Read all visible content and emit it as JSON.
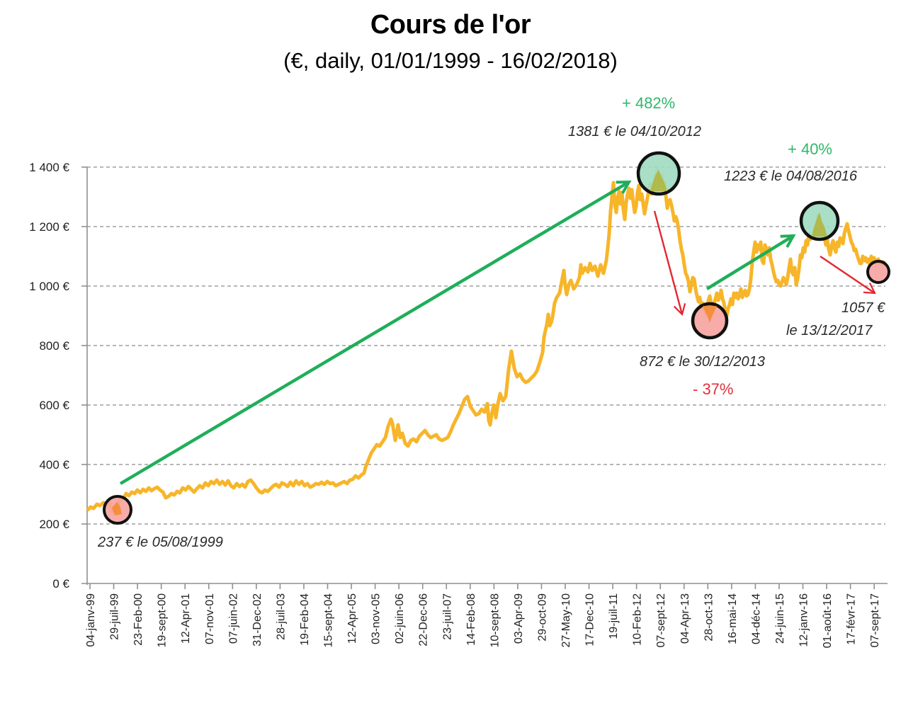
{
  "header": {
    "title": "Cours de l'or",
    "subtitle": "(€, daily, 01/01/1999 - 16/02/2018)"
  },
  "y_axis": {
    "ticks": [
      "0 €",
      "200 €",
      "400 €",
      "600 €",
      "800 €",
      "1 000 €",
      "1 200 €",
      "1 400 €"
    ]
  },
  "x_axis": {
    "ticks": [
      "04-janv-99",
      "29-juil-99",
      "23-Feb-00",
      "19-sept-00",
      "12-Apr-01",
      "07-nov-01",
      "07-juin-02",
      "31-Dec-02",
      "28-juil-03",
      "19-Feb-04",
      "15-sept-04",
      "12-Apr-05",
      "03-nov-05",
      "02-juin-06",
      "22-Dec-06",
      "23-juil-07",
      "14-Feb-08",
      "10-sept-08",
      "03-Apr-09",
      "29-oct-09",
      "27-May-10",
      "17-Dec-10",
      "19-juil-11",
      "10-Feb-12",
      "07-sept-12",
      "04-Apr-13",
      "28-oct-13",
      "16-mai-14",
      "04-déc-14",
      "24-juin-15",
      "12-janv-16",
      "01-août-16",
      "17-févr-17",
      "07-sept-17"
    ]
  },
  "annotations": {
    "low_1999": "237 € le 05/08/1999",
    "high_2012": "1381 € le 04/10/2012",
    "low_2013": "872 € le 30/12/2013",
    "high_2016": "1223 € le 04/08/2016",
    "last_2017_value": "1057 €",
    "last_2017_date": "le 13/12/2017",
    "pct_up_1": "+ 482%",
    "pct_down": "- 37%",
    "pct_up_2": "+ 40%"
  },
  "colors": {
    "line": "#f7b52a",
    "up_arrow": "#1fae5a",
    "down_arrow": "#e3262f",
    "high_marker_fill": "#9fdcc0",
    "low_marker_fill": "#f6a3a0",
    "grid": "#8c8c8c"
  },
  "chart_data": {
    "type": "line",
    "title": "Cours de l'or",
    "subtitle": "(€, daily, 01/01/1999 - 16/02/2018)",
    "xlabel": "",
    "ylabel": "",
    "ylim": [
      0,
      1400
    ],
    "grid": true,
    "legend": null,
    "x_tick_labels": [
      "04-janv-99",
      "29-juil-99",
      "23-Feb-00",
      "19-sept-00",
      "12-Apr-01",
      "07-nov-01",
      "07-juin-02",
      "31-Dec-02",
      "28-juil-03",
      "19-Feb-04",
      "15-sept-04",
      "12-Apr-05",
      "03-nov-05",
      "02-juin-06",
      "22-Dec-06",
      "23-juil-07",
      "14-Feb-08",
      "10-sept-08",
      "03-Apr-09",
      "29-oct-09",
      "27-May-10",
      "17-Dec-10",
      "19-juil-11",
      "10-Feb-12",
      "07-sept-12",
      "04-Apr-13",
      "28-oct-13",
      "16-mai-14",
      "04-déc-14",
      "24-juin-15",
      "12-janv-16",
      "01-août-16",
      "17-févr-17",
      "07-sept-17"
    ],
    "y_tick_labels": [
      "0 €",
      "200 €",
      "400 €",
      "600 €",
      "800 €",
      "1 000 €",
      "1 200 €",
      "1 400 €"
    ],
    "series": [
      {
        "name": "Cours de l'or (€)",
        "x": [
          "1999-01",
          "1999-08",
          "2000-02",
          "2000-09",
          "2001-04",
          "2001-11",
          "2002-06",
          "2002-12",
          "2003-07",
          "2004-02",
          "2004-09",
          "2005-04",
          "2005-11",
          "2006-06",
          "2006-12",
          "2007-07",
          "2008-02",
          "2008-09",
          "2009-04",
          "2009-10",
          "2010-05",
          "2010-12",
          "2011-07",
          "2012-02",
          "2012-10",
          "2013-04",
          "2013-12",
          "2014-05",
          "2014-12",
          "2015-06",
          "2016-01",
          "2016-08",
          "2017-02",
          "2017-09",
          "2017-12",
          "2018-02"
        ],
        "values": [
          250,
          237,
          300,
          315,
          295,
          315,
          330,
          320,
          320,
          330,
          330,
          335,
          400,
          500,
          480,
          500,
          620,
          580,
          700,
          750,
          960,
          1050,
          1150,
          1300,
          1381,
          1150,
          872,
          950,
          980,
          1050,
          1050,
          1223,
          1140,
          1100,
          1057,
          1080
        ]
      }
    ],
    "annotations": [
      {
        "label": "237 € le 05/08/1999",
        "x": "1999-08-05",
        "y": 237,
        "type": "low"
      },
      {
        "label": "1381 € le 04/10/2012",
        "x": "2012-10-04",
        "y": 1381,
        "type": "high"
      },
      {
        "label": "872 € le 30/12/2013",
        "x": "2013-12-30",
        "y": 872,
        "type": "low"
      },
      {
        "label": "1223 € le 04/08/2016",
        "x": "2016-08-04",
        "y": 1223,
        "type": "high"
      },
      {
        "label": "1057 € le 13/12/2017",
        "x": "2017-12-13",
        "y": 1057,
        "type": "low"
      },
      {
        "label": "+ 482%",
        "from": "1999-08-05",
        "to": "2012-10-04"
      },
      {
        "label": "- 37%",
        "from": "2012-10-04",
        "to": "2013-12-30"
      },
      {
        "label": "+ 40%",
        "from": "2013-12-30",
        "to": "2016-08-04"
      }
    ]
  }
}
